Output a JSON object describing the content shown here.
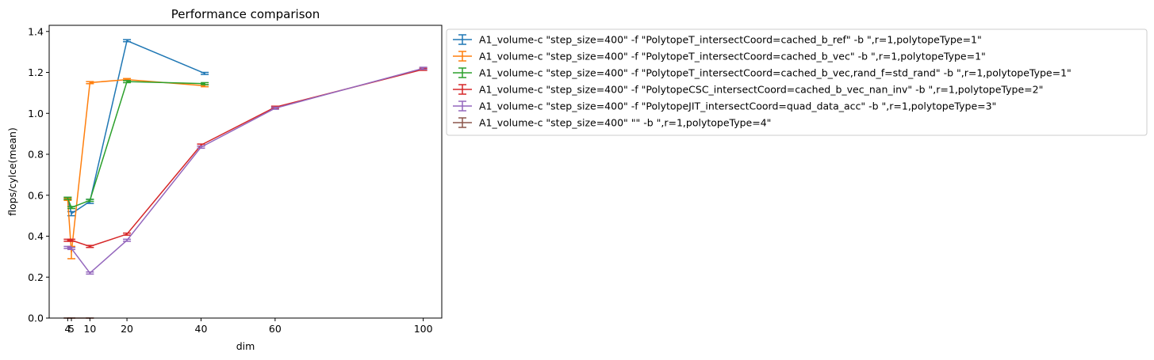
{
  "chart_data": {
    "type": "line",
    "title": "Performance comparison",
    "xlabel": "dim",
    "ylabel": "flops/cylce(mean)",
    "xlim": [
      -1,
      105
    ],
    "ylim": [
      0,
      1.43
    ],
    "x_ticks": [
      4,
      5,
      10,
      20,
      40,
      60,
      100
    ],
    "y_ticks": [
      0.0,
      0.2,
      0.4,
      0.6,
      0.8,
      1.0,
      1.2,
      1.4
    ],
    "grid": false,
    "legend": "outside-upper-right",
    "series": [
      {
        "name": "A1_volume-c \"step_size=400\" -f \"PolytopeT_intersectCoord=cached_b_ref\" -b \",r=1,polytopeType=1\"",
        "color": "#1f77b4",
        "x": [
          4,
          5,
          10,
          20,
          41
        ],
        "y": [
          0.585,
          0.51,
          0.57,
          1.355,
          1.195
        ],
        "err": [
          0.005,
          0.01,
          0.01,
          0.005,
          0.005
        ]
      },
      {
        "name": "A1_volume-c \"step_size=400\" -f \"PolytopeT_intersectCoord=cached_b_vec\" -b \",r=1,polytopeType=1\"",
        "color": "#ff7f0e",
        "x": [
          4,
          5,
          10,
          20,
          41
        ],
        "y": [
          0.58,
          0.32,
          1.15,
          1.165,
          1.135
        ],
        "err": [
          0.005,
          0.03,
          0.005,
          0.005,
          0.005
        ]
      },
      {
        "name": "A1_volume-c \"step_size=400\" -f \"PolytopeT_intersectCoord=cached_b_vec,rand_f=std_rand\" -b \",r=1,polytopeType=1\"",
        "color": "#2ca02c",
        "x": [
          4,
          5,
          10,
          20,
          41
        ],
        "y": [
          0.585,
          0.54,
          0.575,
          1.155,
          1.145
        ],
        "err": [
          0.005,
          0.005,
          0.005,
          0.005,
          0.005
        ]
      },
      {
        "name": "A1_volume-c \"step_size=400\" -f \"PolytopeCSC_intersectCoord=cached_b_vec_nan_inv\" -b \",r=1,polytopeType=2\"",
        "color": "#d62728",
        "x": [
          4,
          5,
          10,
          20,
          40,
          60,
          100
        ],
        "y": [
          0.38,
          0.38,
          0.35,
          0.41,
          0.845,
          1.03,
          1.215
        ],
        "err": [
          0.005,
          0.005,
          0.005,
          0.005,
          0.005,
          0.005,
          0.005
        ]
      },
      {
        "name": "A1_volume-c \"step_size=400\" -f \"PolytopeJIT_intersectCoord=quad_data_acc\" -b \",r=1,polytopeType=3\"",
        "color": "#9467bd",
        "x": [
          4,
          5,
          10,
          20,
          40,
          60,
          100
        ],
        "y": [
          0.345,
          0.34,
          0.22,
          0.38,
          0.835,
          1.025,
          1.22
        ],
        "err": [
          0.005,
          0.005,
          0.005,
          0.005,
          0.005,
          0.005,
          0.005
        ]
      },
      {
        "name": "A1_volume-c \"step_size=400\"  \"\" -b \",r=1,polytopeType=4\"",
        "color": "#8c564b",
        "x": [
          4,
          5,
          10
        ],
        "y": [
          0.0,
          0.0,
          0.0
        ],
        "err": [
          0.0,
          0.0,
          0.0
        ]
      }
    ]
  }
}
